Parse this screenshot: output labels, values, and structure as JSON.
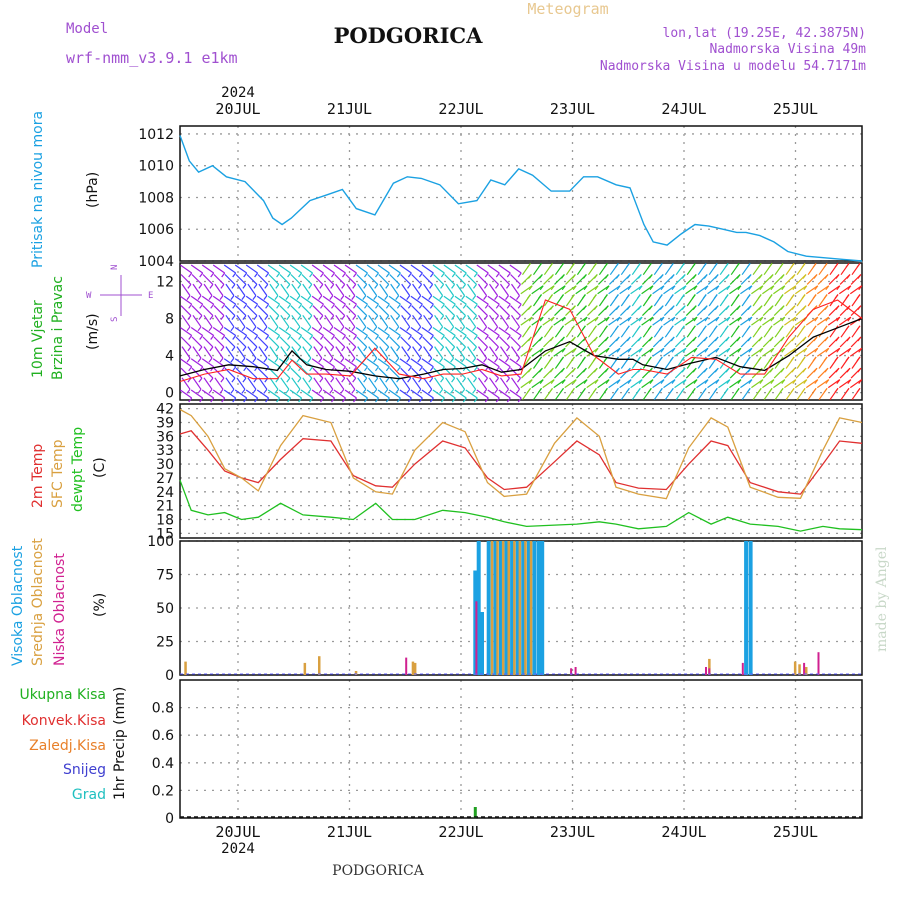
{
  "header": {
    "model_label": "Model",
    "model_name": "wrf-nmm_v3.9.1 e1km",
    "title": "PODGORICA",
    "subtitle": "Meteogram",
    "coords": "lon,lat (19.25E, 42.3875N)",
    "altitude": "Nadmorska Visina 49m",
    "model_altitude": "Nadmorska Visina u modelu 54.7171m"
  },
  "footer": {
    "station": "PODGORICA",
    "watermark": "made by Angel"
  },
  "x_axis": {
    "year": "2024",
    "days": [
      "20JUL",
      "21JUL",
      "22JUL",
      "23JUL",
      "24JUL",
      "25JUL"
    ]
  },
  "colors": {
    "pressure": "#1ba1e2",
    "wind_speed": "#000000",
    "gust": "#ff2020",
    "temp2m": "#e03030",
    "sfc_temp": "#d9a040",
    "dewpt": "#20c020",
    "cloud_high": "#1ba1e2",
    "cloud_mid": "#d9a040",
    "cloud_low": "#d02090",
    "precip_total": "#20a020",
    "grid": "#9a9a9a"
  },
  "chart_data": [
    {
      "type": "line",
      "name": "pressure",
      "ylabel": [
        "Pritisak na nivou mora",
        "(hPa)"
      ],
      "ylim": [
        1004,
        1012.5
      ],
      "yticks": [
        1004,
        1006,
        1008,
        1010,
        1012
      ],
      "x": [
        0,
        0.1,
        0.2,
        0.35,
        0.5,
        0.7,
        0.9,
        1.0,
        1.1,
        1.2,
        1.4,
        1.6,
        1.75,
        1.9,
        2.1,
        2.3,
        2.45,
        2.6,
        2.8,
        3.0,
        3.2,
        3.35,
        3.5,
        3.65,
        3.8,
        4.0,
        4.2,
        4.35,
        4.5,
        4.7,
        4.85,
        5.0,
        5.1,
        5.25,
        5.4,
        5.55,
        5.7,
        5.85,
        6.0,
        6.1,
        6.25,
        6.4,
        6.55,
        6.75,
        6.95,
        7.15,
        7.35
      ],
      "y": [
        1011.9,
        1010.3,
        1009.6,
        1010.0,
        1009.3,
        1009.0,
        1007.8,
        1006.7,
        1006.3,
        1006.7,
        1007.8,
        1008.2,
        1008.5,
        1007.3,
        1006.9,
        1008.9,
        1009.3,
        1009.2,
        1008.8,
        1007.6,
        1007.8,
        1009.1,
        1008.8,
        1009.8,
        1009.4,
        1008.4,
        1008.4,
        1009.3,
        1009.3,
        1008.8,
        1008.6,
        1006.3,
        1005.2,
        1005.0,
        1005.7,
        1006.3,
        1006.2,
        1006.0,
        1005.8,
        1005.8,
        1005.6,
        1005.2,
        1004.6,
        1004.3,
        1004.2,
        1004.1,
        1004.0
      ]
    },
    {
      "type": "line",
      "name": "wind",
      "ylabel": [
        "10m Vjetar",
        "Brzina i Pravac",
        "(m/s)"
      ],
      "ylim": [
        -0.8,
        14
      ],
      "yticks": [
        0,
        4,
        8,
        12
      ],
      "series": [
        {
          "key": "speed",
          "x": [
            0,
            0.25,
            0.5,
            0.75,
            1.0,
            1.15,
            1.3,
            1.5,
            1.75,
            2.0,
            2.25,
            2.5,
            2.7,
            2.9,
            3.1,
            3.3,
            3.5,
            3.75,
            4.0,
            4.25,
            4.5,
            4.65,
            4.75,
            5.0,
            5.25,
            5.5,
            5.75,
            6.0,
            6.25,
            6.5,
            6.75,
            7.0
          ],
          "y": [
            1.8,
            2.5,
            3.0,
            2.8,
            2.4,
            4.5,
            3.0,
            2.5,
            2.3,
            1.8,
            1.5,
            2.0,
            2.5,
            2.6,
            3.0,
            2.2,
            2.5,
            4.5,
            5.5,
            4.0,
            3.6,
            3.6,
            3.0,
            2.5,
            3.2,
            3.8,
            2.8,
            2.4,
            4.0,
            6.0,
            7.0,
            8.0
          ]
        },
        {
          "key": "gust",
          "x": [
            0,
            0.25,
            0.5,
            0.75,
            1.0,
            1.15,
            1.3,
            1.5,
            1.75,
            2.0,
            2.25,
            2.5,
            2.7,
            2.9,
            3.1,
            3.3,
            3.5,
            3.75,
            4.0,
            4.25,
            4.5,
            4.65,
            4.75,
            5.0,
            5.25,
            5.5,
            5.75,
            6.0,
            6.25,
            6.5,
            6.75,
            7.0
          ],
          "y": [
            1.2,
            2.0,
            2.5,
            1.5,
            1.5,
            3.5,
            2.0,
            2.0,
            1.8,
            4.8,
            2.0,
            1.5,
            2.0,
            2.0,
            2.5,
            1.8,
            2.0,
            10.0,
            9.0,
            4.0,
            2.0,
            2.5,
            2.5,
            2.0,
            3.8,
            3.6,
            2.0,
            2.0,
            6.0,
            9.0,
            10.0,
            8.0
          ]
        }
      ]
    },
    {
      "type": "line",
      "name": "temperature",
      "ylabel": [
        "2m Temp",
        "SFC Temp",
        "dewpt Temp",
        "(C)"
      ],
      "ylim": [
        14,
        43
      ],
      "yticks": [
        15,
        18,
        21,
        24,
        27,
        30,
        33,
        36,
        39,
        42
      ],
      "series": [
        {
          "key": "temp2m",
          "x": [
            0,
            0.1,
            0.25,
            0.4,
            0.55,
            0.7,
            0.9,
            1.1,
            1.35,
            1.55,
            1.75,
            1.9,
            2.1,
            2.35,
            2.55,
            2.75,
            2.9,
            3.1,
            3.35,
            3.55,
            3.75,
            3.9,
            4.1,
            4.35,
            4.55,
            4.75,
            4.9,
            5.1,
            5.35,
            5.55,
            5.75,
            5.9,
            6.1
          ],
          "y": [
            36.5,
            37.2,
            33.0,
            28.5,
            27.0,
            26.0,
            31.0,
            35.5,
            35.0,
            27.5,
            25.3,
            25.0,
            30.0,
            35.0,
            33.5,
            27.0,
            24.5,
            25.0,
            30.5,
            35.0,
            32.0,
            26.0,
            24.8,
            24.5,
            30.0,
            35.0,
            34.0,
            26.0,
            24.0,
            23.5,
            30.0,
            35.0,
            34.5
          ]
        },
        {
          "key": "sfc_temp",
          "x": [
            0,
            0.1,
            0.25,
            0.4,
            0.55,
            0.7,
            0.9,
            1.1,
            1.35,
            1.55,
            1.75,
            1.9,
            2.1,
            2.35,
            2.55,
            2.75,
            2.9,
            3.1,
            3.35,
            3.55,
            3.75,
            3.9,
            4.1,
            4.35,
            4.55,
            4.75,
            4.9,
            5.1,
            5.35,
            5.55,
            5.75,
            5.9,
            6.1
          ],
          "y": [
            41.8,
            40.5,
            36.0,
            29.0,
            27.0,
            24.2,
            34.0,
            40.5,
            39.0,
            27.0,
            24.0,
            23.5,
            33.0,
            39.0,
            37.0,
            26.0,
            23.0,
            23.5,
            34.5,
            40.0,
            36.0,
            25.0,
            23.5,
            22.5,
            33.5,
            40.0,
            38.0,
            25.0,
            22.8,
            22.6,
            33.0,
            40.0,
            39.0
          ]
        },
        {
          "key": "dewpt",
          "x": [
            0,
            0.1,
            0.25,
            0.4,
            0.55,
            0.7,
            0.9,
            1.1,
            1.35,
            1.55,
            1.75,
            1.9,
            2.1,
            2.35,
            2.55,
            2.75,
            2.9,
            3.1,
            3.35,
            3.55,
            3.75,
            3.9,
            4.1,
            4.35,
            4.55,
            4.75,
            4.9,
            5.1,
            5.35,
            5.55,
            5.75,
            5.9,
            6.1
          ],
          "y": [
            26.5,
            20.0,
            19.0,
            19.5,
            18.0,
            18.5,
            21.5,
            19.0,
            18.5,
            18.0,
            21.5,
            18.0,
            18.0,
            20.0,
            19.5,
            18.5,
            17.5,
            16.5,
            16.8,
            17.0,
            17.5,
            17.0,
            16.0,
            16.5,
            19.5,
            17.0,
            18.5,
            17.0,
            16.5,
            15.5,
            16.5,
            16.0,
            15.8
          ]
        }
      ]
    },
    {
      "type": "bar",
      "name": "clouds",
      "ylabel": [
        "Visoka Oblacnost",
        "Srednja Oblacnost",
        "Niska Oblacnost",
        "(%)"
      ],
      "ylim": [
        0,
        100
      ],
      "yticks": [
        0,
        25,
        50,
        75,
        100
      ],
      "series": [
        {
          "key": "high",
          "x": [
            2.65,
            2.68,
            2.71,
            2.77,
            2.83,
            2.88,
            2.93,
            2.98,
            3.03,
            3.08,
            3.13,
            3.18,
            3.22,
            3.25,
            5.08,
            5.12
          ],
          "values": [
            78,
            100,
            47,
            100,
            100,
            100,
            100,
            100,
            100,
            100,
            100,
            100,
            100,
            100,
            100,
            100
          ]
        },
        {
          "key": "mid",
          "x": [
            0.05,
            1.12,
            1.25,
            1.58,
            2.09,
            2.11,
            2.8,
            2.85,
            2.9,
            2.95,
            3.0,
            3.05,
            3.1,
            3.15,
            4.75,
            5.52,
            5.56,
            5.62
          ],
          "values": [
            10,
            9,
            14,
            3,
            10,
            9,
            100,
            100,
            100,
            100,
            100,
            100,
            100,
            100,
            12,
            10,
            8,
            6
          ]
        },
        {
          "key": "low",
          "x": [
            2.03,
            2.66,
            3.51,
            3.55,
            4.72,
            4.75,
            5.05,
            5.6,
            5.73
          ],
          "values": [
            13,
            55,
            5,
            6,
            6,
            5,
            9,
            9,
            17
          ]
        }
      ]
    },
    {
      "type": "bar",
      "name": "precipitation",
      "ylabel": [
        "1hr Precip (mm)"
      ],
      "legend": [
        "Ukupna Kisa",
        "Konvek.Kisa",
        "Zaledj.Kisa",
        "Snijeg",
        "Grad"
      ],
      "ylim": [
        0,
        1.0
      ],
      "yticks": [
        0,
        0.2,
        0.4,
        0.6,
        0.8
      ],
      "series": [
        {
          "key": "total",
          "x": [
            2.65
          ],
          "values": [
            0.08
          ]
        }
      ]
    }
  ]
}
